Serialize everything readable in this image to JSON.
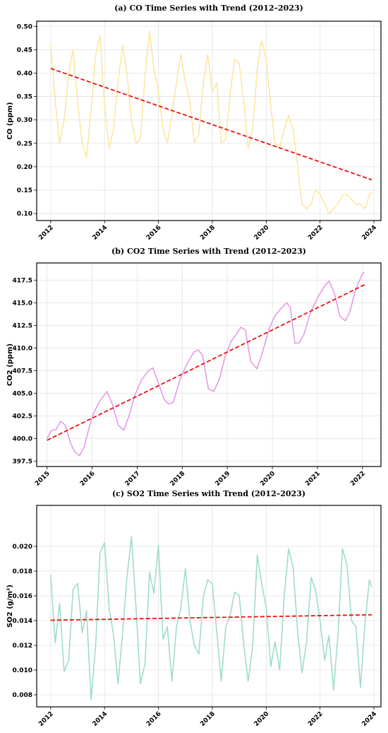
{
  "chart_data": [
    {
      "type": "line",
      "title": "(a) CO Time Series with Trend (2012–2023)",
      "y_label": "CO (ppm)",
      "grid": true,
      "xlim": [
        2011.48,
        2024.26
      ],
      "xticks": [
        2012,
        2014,
        2016,
        2018,
        2020,
        2022,
        2024
      ],
      "ylim": [
        0.085,
        0.511
      ],
      "yticks": [
        {
          "value": 0.1,
          "label": "0.10"
        },
        0.15,
        {
          "value": 0.2,
          "label": "0.20"
        },
        0.25,
        {
          "value": 0.3,
          "label": "0.30"
        },
        0.35,
        {
          "value": 0.4,
          "label": "0.40"
        },
        0.45,
        {
          "value": 0.5,
          "label": "0.50"
        }
      ],
      "series": [
        {
          "color": "#fce6a4",
          "linestyle": "solid",
          "x": [
            2012.0,
            2012.17,
            2012.33,
            2012.5,
            2012.67,
            2012.83,
            2013.0,
            2013.17,
            2013.33,
            2013.5,
            2013.67,
            2013.83,
            2014.0,
            2014.17,
            2014.33,
            2014.5,
            2014.67,
            2014.83,
            2015.0,
            2015.17,
            2015.33,
            2015.5,
            2015.67,
            2015.83,
            2016.0,
            2016.17,
            2016.33,
            2016.5,
            2016.67,
            2016.83,
            2017.0,
            2017.17,
            2017.33,
            2017.5,
            2017.67,
            2017.83,
            2018.0,
            2018.17,
            2018.33,
            2018.5,
            2018.67,
            2018.83,
            2019.0,
            2019.17,
            2019.33,
            2019.5,
            2019.67,
            2019.83,
            2020.0,
            2020.17,
            2020.33,
            2020.5,
            2020.67,
            2020.83,
            2021.0,
            2021.17,
            2021.33,
            2021.5,
            2021.67,
            2021.83,
            2022.0,
            2022.17,
            2022.33,
            2022.5,
            2022.67,
            2022.83,
            2023.0,
            2023.17,
            2023.33,
            2023.5,
            2023.67,
            2023.83,
            2023.92
          ],
          "values": [
            0.46,
            0.34,
            0.25,
            0.3,
            0.4,
            0.45,
            0.34,
            0.25,
            0.22,
            0.32,
            0.44,
            0.48,
            0.33,
            0.24,
            0.28,
            0.38,
            0.46,
            0.4,
            0.3,
            0.25,
            0.26,
            0.39,
            0.49,
            0.41,
            0.36,
            0.28,
            0.25,
            0.31,
            0.38,
            0.44,
            0.38,
            0.34,
            0.25,
            0.27,
            0.38,
            0.44,
            0.36,
            0.38,
            0.25,
            0.26,
            0.36,
            0.43,
            0.42,
            0.34,
            0.24,
            0.28,
            0.41,
            0.47,
            0.43,
            0.33,
            0.25,
            0.24,
            0.28,
            0.31,
            0.28,
            0.2,
            0.12,
            0.11,
            0.12,
            0.15,
            0.14,
            0.12,
            0.1,
            0.11,
            0.12,
            0.14,
            0.14,
            0.13,
            0.12,
            0.12,
            0.11,
            0.14,
            0.145
          ]
        },
        {
          "color": "#ee1111",
          "linestyle": "dashed",
          "x": [
            2012.0,
            2023.92
          ],
          "values": [
            0.41,
            0.172
          ]
        }
      ]
    },
    {
      "type": "line",
      "title": "(b) CO2 Time Series with Trend (2012–2023)",
      "y_label": "CO2 (ppm)",
      "grid": true,
      "xlim": [
        2014.77,
        2022.41
      ],
      "xticks": [
        2015,
        2016,
        2017,
        2018,
        2019,
        2020,
        2021,
        2022
      ],
      "ylim": [
        396.9,
        419.4
      ],
      "yticks": [
        397.5,
        {
          "value": 400,
          "label": "400.0"
        },
        402.5,
        {
          "value": 405,
          "label": "405.0"
        },
        407.5,
        {
          "value": 410,
          "label": "410.0"
        },
        412.5,
        {
          "value": 415,
          "label": "415.0"
        },
        417.5
      ],
      "series": [
        {
          "color": "#e79ae8",
          "linestyle": "solid",
          "x": [
            2015.0,
            2015.1,
            2015.2,
            2015.3,
            2015.4,
            2015.52,
            2015.62,
            2015.72,
            2015.82,
            2015.95,
            2016.05,
            2016.18,
            2016.33,
            2016.45,
            2016.58,
            2016.7,
            2016.82,
            2016.95,
            2017.1,
            2017.25,
            2017.35,
            2017.48,
            2017.6,
            2017.7,
            2017.8,
            2017.95,
            2018.1,
            2018.25,
            2018.35,
            2018.45,
            2018.58,
            2018.7,
            2018.82,
            2018.95,
            2019.08,
            2019.2,
            2019.3,
            2019.4,
            2019.52,
            2019.66,
            2019.78,
            2019.92,
            2020.05,
            2020.18,
            2020.32,
            2020.4,
            2020.5,
            2020.6,
            2020.7,
            2020.85,
            2021.0,
            2021.15,
            2021.26,
            2021.38,
            2021.5,
            2021.62,
            2021.72,
            2021.85,
            2022.0,
            2022.05
          ],
          "values": [
            400.0,
            400.9,
            401.0,
            401.9,
            401.5,
            399.5,
            398.5,
            398.1,
            399.0,
            401.5,
            403.0,
            404.2,
            405.2,
            403.8,
            401.5,
            400.9,
            402.5,
            404.8,
            406.5,
            407.5,
            407.8,
            406.0,
            404.3,
            403.8,
            404.0,
            406.5,
            408.2,
            409.5,
            409.8,
            409.2,
            405.5,
            405.2,
            406.5,
            409.0,
            410.7,
            411.5,
            412.3,
            412.0,
            408.5,
            407.7,
            409.5,
            412.0,
            413.5,
            414.3,
            415.0,
            414.5,
            410.5,
            410.6,
            411.5,
            414.0,
            415.5,
            416.8,
            417.4,
            416.0,
            413.5,
            413.0,
            414.0,
            416.5,
            418.2,
            418.4
          ]
        },
        {
          "color": "#ee1111",
          "linestyle": "dashed",
          "x": [
            2015.0,
            2022.05
          ],
          "values": [
            399.8,
            417.0
          ]
        }
      ]
    },
    {
      "type": "line",
      "title": "(c) SO2 Time Series with Trend (2012–2023)",
      "y_label": "SO2 (g/m²)",
      "grid": true,
      "xlim": [
        2011.48,
        2024.26
      ],
      "xticks": [
        2012,
        2014,
        2016,
        2018,
        2020,
        2022,
        2024
      ],
      "ylim": [
        0.00703,
        0.02331
      ],
      "yticks": [
        0.008,
        {
          "value": 0.01,
          "label": "0.010"
        },
        0.012,
        0.014,
        0.016,
        0.018,
        {
          "value": 0.02,
          "label": "0.020"
        }
      ],
      "series": [
        {
          "color": "#9fdccb",
          "linestyle": "solid",
          "x": [
            2012.0,
            2012.17,
            2012.33,
            2012.5,
            2012.67,
            2012.83,
            2013.0,
            2013.17,
            2013.33,
            2013.5,
            2013.67,
            2013.83,
            2014.0,
            2014.17,
            2014.33,
            2014.5,
            2014.67,
            2014.83,
            2015.0,
            2015.17,
            2015.33,
            2015.5,
            2015.67,
            2015.83,
            2016.0,
            2016.17,
            2016.33,
            2016.5,
            2016.67,
            2016.83,
            2017.0,
            2017.17,
            2017.33,
            2017.5,
            2017.67,
            2017.83,
            2018.0,
            2018.17,
            2018.33,
            2018.5,
            2018.67,
            2018.83,
            2019.0,
            2019.17,
            2019.33,
            2019.5,
            2019.67,
            2019.83,
            2020.0,
            2020.17,
            2020.33,
            2020.5,
            2020.67,
            2020.83,
            2021.0,
            2021.17,
            2021.33,
            2021.5,
            2021.67,
            2021.83,
            2022.0,
            2022.17,
            2022.33,
            2022.5,
            2022.67,
            2022.83,
            2023.0,
            2023.17,
            2023.33,
            2023.5,
            2023.67,
            2023.83,
            2023.92
          ],
          "values": [
            0.0177,
            0.0122,
            0.0154,
            0.0099,
            0.0108,
            0.0165,
            0.017,
            0.013,
            0.0148,
            0.0076,
            0.012,
            0.0195,
            0.0203,
            0.015,
            0.0129,
            0.0089,
            0.013,
            0.0175,
            0.0208,
            0.015,
            0.0089,
            0.0105,
            0.0179,
            0.0162,
            0.0201,
            0.0125,
            0.0135,
            0.0091,
            0.0135,
            0.015,
            0.0182,
            0.014,
            0.012,
            0.0113,
            0.016,
            0.0173,
            0.017,
            0.013,
            0.0091,
            0.0135,
            0.0145,
            0.0163,
            0.016,
            0.012,
            0.0091,
            0.012,
            0.0193,
            0.017,
            0.0151,
            0.0103,
            0.0123,
            0.01,
            0.016,
            0.0198,
            0.0183,
            0.013,
            0.0098,
            0.0123,
            0.0175,
            0.0165,
            0.014,
            0.0108,
            0.0128,
            0.0084,
            0.013,
            0.0198,
            0.0185,
            0.014,
            0.0135,
            0.0086,
            0.0138,
            0.0173,
            0.0167
          ]
        },
        {
          "color": "#ee1111",
          "linestyle": "dashed",
          "x": [
            2012.0,
            2023.92
          ],
          "values": [
            0.01403,
            0.01447
          ]
        }
      ]
    }
  ]
}
